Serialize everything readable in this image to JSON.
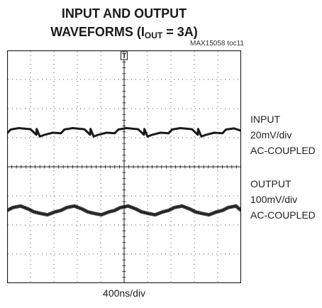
{
  "title": {
    "line1": "INPUT AND OUTPUT",
    "line2_prefix": "WAVEFORMS (I",
    "line2_sub": "OUT",
    "line2_suffix": " = 3A)"
  },
  "figure_id": "MAX15058 toc11",
  "trigger_marker": "T",
  "channels": {
    "input": {
      "name": "INPUT",
      "scale": "20mV/div",
      "coupling": "AC-COUPLED"
    },
    "output": {
      "name": "OUTPUT",
      "scale": "100mV/div",
      "coupling": "AC-COUPLED"
    }
  },
  "timebase": "400ns/div",
  "chart_data": {
    "type": "line",
    "grid": true,
    "x_divisions": 10,
    "y_divisions": 8,
    "x_unit": "ns",
    "x_per_division": 400,
    "series": [
      {
        "name": "INPUT",
        "scale_per_division_mV": 20,
        "baseline_division": 5.5,
        "period_ns": 920,
        "shape": "sinusoidal ripple",
        "peak_to_peak_mV": 6,
        "x": [
          0,
          100,
          230,
          360,
          460,
          560,
          690,
          820,
          920,
          1020,
          1150,
          1280,
          1380,
          1480,
          1610,
          1740,
          1840,
          1940,
          2070,
          2200,
          2300,
          2400,
          2530,
          2660,
          2760,
          2860,
          2990,
          3120,
          3220,
          3320,
          3450,
          3580,
          3680,
          3780,
          3910,
          4000
        ],
        "y": [
          0,
          2,
          3,
          1,
          -1,
          -2,
          -3,
          -1,
          0,
          2,
          3,
          1,
          -1,
          -2,
          -3,
          -1,
          0,
          2,
          3,
          1,
          -1,
          -2,
          -3,
          -1,
          0,
          2,
          3,
          1,
          -1,
          -2,
          -3,
          -1,
          0,
          2,
          3,
          0
        ]
      },
      {
        "name": "OUTPUT",
        "scale_per_division_mV": 100,
        "baseline_division": 2.8,
        "period_ns": 920,
        "shape": "sawtooth ripple with switching spikes",
        "peak_to_peak_mV": 30,
        "x": [
          0,
          60,
          200,
          400,
          500,
          505,
          560,
          640,
          780,
          920,
          980,
          1120,
          1320,
          1420,
          1425,
          1480,
          1560,
          1700,
          1840,
          1900,
          2040,
          2240,
          2340,
          2345,
          2400,
          2480,
          2620,
          2760,
          2820,
          2960,
          3160,
          3260,
          3265,
          3320,
          3400,
          3540,
          3680,
          3740,
          3880,
          4000
        ],
        "y": [
          -5,
          8,
          13,
          9,
          -10,
          10,
          -16,
          -10,
          -3,
          -5,
          8,
          13,
          9,
          -10,
          10,
          -16,
          -10,
          -3,
          -5,
          8,
          13,
          9,
          -10,
          10,
          -16,
          -10,
          -3,
          -5,
          8,
          13,
          9,
          -10,
          10,
          -16,
          -10,
          -3,
          -5,
          8,
          12,
          4
        ]
      }
    ]
  }
}
